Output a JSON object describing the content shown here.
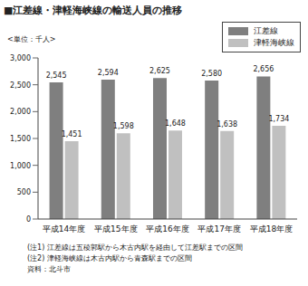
{
  "chart_data": {
    "type": "bar",
    "title": "■江差線・津軽海峡線の輸送人員の推移",
    "subtitle": "<単位：千人>",
    "categories": [
      "平成14年度",
      "平成15年度",
      "平成16年度",
      "平成17年度",
      "平成18年度"
    ],
    "series": [
      {
        "name": "江差線",
        "color": "#7f7f7f",
        "values": [
          2545,
          2594,
          2625,
          2580,
          2656
        ],
        "value_labels": [
          "2,545",
          "2,594",
          "2,625",
          "2,580",
          "2,656"
        ]
      },
      {
        "name": "津軽海峡線",
        "color": "#c0c0c0",
        "values": [
          1451,
          1598,
          1648,
          1638,
          1734
        ],
        "value_labels": [
          "1,451",
          "1,598",
          "1,648",
          "1,638",
          "1,734"
        ]
      }
    ],
    "ylim": [
      0,
      3000
    ],
    "yticks": [
      0,
      500,
      {
        "value": 1000,
        "label": "1,000"
      },
      {
        "value": 1500,
        "label": "1,500"
      },
      {
        "value": 2000,
        "label": "2,000"
      },
      {
        "value": 2500,
        "label": "2,500"
      },
      {
        "value": 3000,
        "label": "3,000"
      }
    ],
    "grid": false,
    "data_labels": true,
    "legend": "upper right",
    "annotations": [
      "(注1) 江差線は五稜郭駅から木古内駅を経由して江差駅までの区間",
      "(注2) 津軽海峡線は木古内駅から青森駅までの区間",
      "資料：北斗市"
    ]
  }
}
